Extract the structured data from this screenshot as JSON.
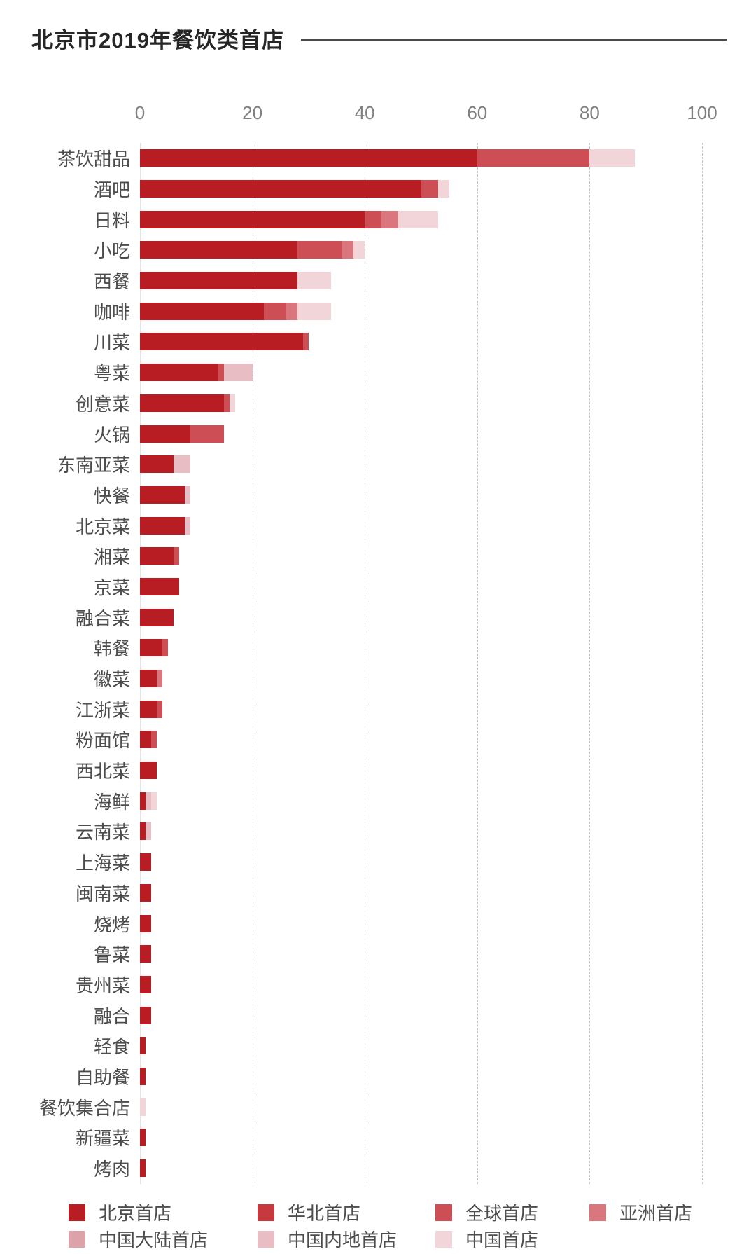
{
  "title": "北京市2019年餐饮类首店",
  "axis": {
    "ticks": [
      0,
      20,
      40,
      60,
      80,
      100
    ],
    "max": 100
  },
  "legend": [
    {
      "label": "北京首店",
      "color": "#B81D23"
    },
    {
      "label": "华北首店",
      "color": "#C6393F"
    },
    {
      "label": "全球首店",
      "color": "#CE4E55"
    },
    {
      "label": "亚洲首店",
      "color": "#D9767E"
    },
    {
      "label": "中国大陆首店",
      "color": "#DCA2AA"
    },
    {
      "label": "中国内地首店",
      "color": "#E8BDC3"
    },
    {
      "label": "中国首店",
      "color": "#F2D5D9"
    }
  ],
  "chart_data": {
    "type": "bar",
    "orientation": "horizontal",
    "stacked": true,
    "title": "北京市2019年餐饮类首店",
    "xlabel": "",
    "ylabel": "",
    "xlim": [
      0,
      100
    ],
    "grid": "vertical-dashed",
    "legend_position": "bottom",
    "categories": [
      "茶饮甜品",
      "酒吧",
      "日料",
      "小吃",
      "西餐",
      "咖啡",
      "川菜",
      "粤菜",
      "创意菜",
      "火锅",
      "东南亚菜",
      "快餐",
      "北京菜",
      "湘菜",
      "京菜",
      "融合菜",
      "韩餐",
      "徽菜",
      "江浙菜",
      "粉面馆",
      "西北菜",
      "海鲜",
      "云南菜",
      "上海菜",
      "闽南菜",
      "烧烤",
      "鲁菜",
      "贵州菜",
      "融合",
      "轻食",
      "自助餐",
      "餐饮集合店",
      "新疆菜",
      "烤肉"
    ],
    "rows": [
      {
        "category": "茶饮甜品",
        "total": 88,
        "segments": [
          {
            "series": "北京首店",
            "value": 60
          },
          {
            "series": "全球首店",
            "value": 20
          },
          {
            "series": "中国首店",
            "value": 8
          }
        ]
      },
      {
        "category": "酒吧",
        "total": 55,
        "segments": [
          {
            "series": "北京首店",
            "value": 50
          },
          {
            "series": "全球首店",
            "value": 3
          },
          {
            "series": "中国首店",
            "value": 2
          }
        ]
      },
      {
        "category": "日料",
        "total": 53,
        "segments": [
          {
            "series": "北京首店",
            "value": 40
          },
          {
            "series": "全球首店",
            "value": 3
          },
          {
            "series": "亚洲首店",
            "value": 3
          },
          {
            "series": "中国首店",
            "value": 7
          }
        ]
      },
      {
        "category": "小吃",
        "total": 40,
        "segments": [
          {
            "series": "北京首店",
            "value": 28
          },
          {
            "series": "全球首店",
            "value": 8
          },
          {
            "series": "亚洲首店",
            "value": 2
          },
          {
            "series": "中国首店",
            "value": 2
          }
        ]
      },
      {
        "category": "西餐",
        "total": 34,
        "segments": [
          {
            "series": "北京首店",
            "value": 28
          },
          {
            "series": "中国首店",
            "value": 6
          }
        ]
      },
      {
        "category": "咖啡",
        "total": 34,
        "segments": [
          {
            "series": "北京首店",
            "value": 22
          },
          {
            "series": "全球首店",
            "value": 4
          },
          {
            "series": "亚洲首店",
            "value": 2
          },
          {
            "series": "中国首店",
            "value": 6
          }
        ]
      },
      {
        "category": "川菜",
        "total": 30,
        "segments": [
          {
            "series": "北京首店",
            "value": 29
          },
          {
            "series": "全球首店",
            "value": 1
          }
        ]
      },
      {
        "category": "粤菜",
        "total": 20,
        "segments": [
          {
            "series": "北京首店",
            "value": 14
          },
          {
            "series": "全球首店",
            "value": 1
          },
          {
            "series": "中国内地首店",
            "value": 5
          }
        ]
      },
      {
        "category": "创意菜",
        "total": 17,
        "segments": [
          {
            "series": "北京首店",
            "value": 15
          },
          {
            "series": "全球首店",
            "value": 1
          },
          {
            "series": "中国首店",
            "value": 1
          }
        ]
      },
      {
        "category": "火锅",
        "total": 15,
        "segments": [
          {
            "series": "北京首店",
            "value": 9
          },
          {
            "series": "全球首店",
            "value": 6
          }
        ]
      },
      {
        "category": "东南亚菜",
        "total": 9,
        "segments": [
          {
            "series": "北京首店",
            "value": 6
          },
          {
            "series": "中国内地首店",
            "value": 3
          }
        ]
      },
      {
        "category": "快餐",
        "total": 9,
        "segments": [
          {
            "series": "北京首店",
            "value": 8
          },
          {
            "series": "中国内地首店",
            "value": 1
          }
        ]
      },
      {
        "category": "北京菜",
        "total": 9,
        "segments": [
          {
            "series": "北京首店",
            "value": 8
          },
          {
            "series": "中国内地首店",
            "value": 1
          }
        ]
      },
      {
        "category": "湘菜",
        "total": 7,
        "segments": [
          {
            "series": "北京首店",
            "value": 6
          },
          {
            "series": "全球首店",
            "value": 1
          }
        ]
      },
      {
        "category": "京菜",
        "total": 7,
        "segments": [
          {
            "series": "北京首店",
            "value": 7
          }
        ]
      },
      {
        "category": "融合菜",
        "total": 6,
        "segments": [
          {
            "series": "北京首店",
            "value": 6
          }
        ]
      },
      {
        "category": "韩餐",
        "total": 5,
        "segments": [
          {
            "series": "北京首店",
            "value": 4
          },
          {
            "series": "全球首店",
            "value": 1
          }
        ]
      },
      {
        "category": "徽菜",
        "total": 4,
        "segments": [
          {
            "series": "北京首店",
            "value": 3
          },
          {
            "series": "亚洲首店",
            "value": 1
          }
        ]
      },
      {
        "category": "江浙菜",
        "total": 4,
        "segments": [
          {
            "series": "北京首店",
            "value": 3
          },
          {
            "series": "全球首店",
            "value": 1
          }
        ]
      },
      {
        "category": "粉面馆",
        "total": 3,
        "segments": [
          {
            "series": "北京首店",
            "value": 2
          },
          {
            "series": "全球首店",
            "value": 1
          }
        ]
      },
      {
        "category": "西北菜",
        "total": 3,
        "segments": [
          {
            "series": "北京首店",
            "value": 3
          }
        ]
      },
      {
        "category": "海鲜",
        "total": 3,
        "segments": [
          {
            "series": "北京首店",
            "value": 1
          },
          {
            "series": "中国内地首店",
            "value": 1
          },
          {
            "series": "中国首店",
            "value": 1
          }
        ]
      },
      {
        "category": "云南菜",
        "total": 2,
        "segments": [
          {
            "series": "北京首店",
            "value": 1
          },
          {
            "series": "中国内地首店",
            "value": 1
          }
        ]
      },
      {
        "category": "上海菜",
        "total": 2,
        "segments": [
          {
            "series": "北京首店",
            "value": 2
          }
        ]
      },
      {
        "category": "闽南菜",
        "total": 2,
        "segments": [
          {
            "series": "北京首店",
            "value": 2
          }
        ]
      },
      {
        "category": "烧烤",
        "total": 2,
        "segments": [
          {
            "series": "北京首店",
            "value": 2
          }
        ]
      },
      {
        "category": "鲁菜",
        "total": 2,
        "segments": [
          {
            "series": "北京首店",
            "value": 2
          }
        ]
      },
      {
        "category": "贵州菜",
        "total": 2,
        "segments": [
          {
            "series": "北京首店",
            "value": 2
          }
        ]
      },
      {
        "category": "融合",
        "total": 2,
        "segments": [
          {
            "series": "北京首店",
            "value": 2
          }
        ]
      },
      {
        "category": "轻食",
        "total": 1,
        "segments": [
          {
            "series": "北京首店",
            "value": 1
          }
        ]
      },
      {
        "category": "自助餐",
        "total": 1,
        "segments": [
          {
            "series": "北京首店",
            "value": 1
          }
        ]
      },
      {
        "category": "餐饮集合店",
        "total": 1,
        "segments": [
          {
            "series": "中国首店",
            "value": 1
          }
        ]
      },
      {
        "category": "新疆菜",
        "total": 1,
        "segments": [
          {
            "series": "北京首店",
            "value": 1
          }
        ]
      },
      {
        "category": "烤肉",
        "total": 1,
        "segments": [
          {
            "series": "北京首店",
            "value": 1
          }
        ]
      }
    ]
  }
}
